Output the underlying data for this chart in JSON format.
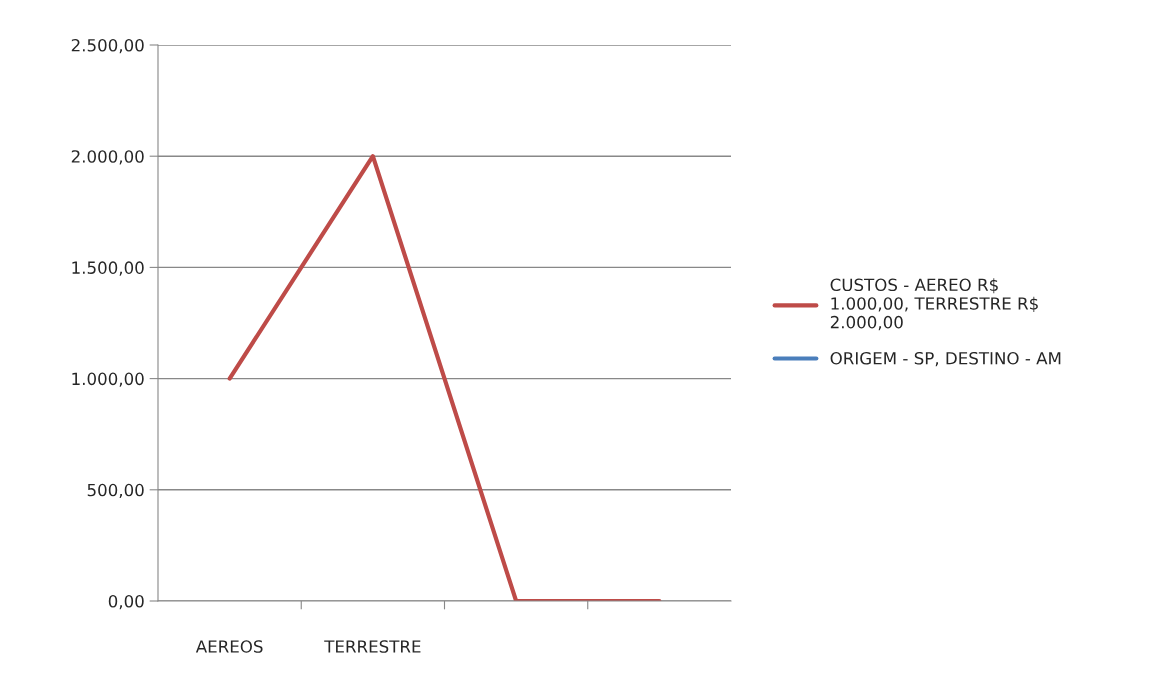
{
  "chart_data": {
    "type": "line",
    "categories": [
      "AEREOS",
      "TERRESTRE",
      null,
      null
    ],
    "series": [
      {
        "name": "CUSTOS - AEREO R$ 1.000,00, TERRESTRE R$ 2.000,00",
        "color": "#be4b48",
        "values": [
          1000,
          2000,
          0,
          0
        ]
      },
      {
        "name": "ORIGEM - SP, DESTINO - AM",
        "color": "#4a7ebb",
        "values": [
          null,
          null,
          null,
          null
        ]
      }
    ],
    "ylim": [
      0,
      2500
    ],
    "yticks": [
      {
        "value": 0,
        "label": "0,00"
      },
      {
        "value": 500,
        "label": "500,00"
      },
      {
        "value": 1000,
        "label": "1.000,00"
      },
      {
        "value": 1500,
        "label": "1.500,00"
      },
      {
        "value": 2000,
        "label": "2.000,00"
      },
      {
        "value": 2500,
        "label": "2.500,00"
      }
    ],
    "grid": "y",
    "legend": "right",
    "marker": "none",
    "line_style": "solid"
  }
}
